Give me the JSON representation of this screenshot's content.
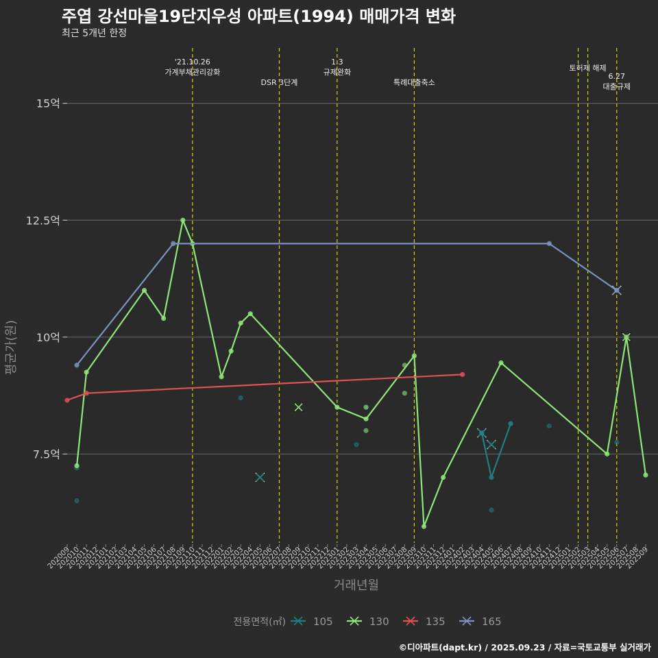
{
  "header": {
    "title": "주엽 강선마을19단지우성 아파트(1994) 매매가격 변화",
    "subtitle": "최근 5개년 한정"
  },
  "caption": "©디아파트(dapt.kr) / 2025.09.23 / 자료=국토교통부 실거래가",
  "colors": {
    "background": "#2b2b2b",
    "grid": "#6a6a6a",
    "event_line": "#d6d600",
    "105": "#1f7f82",
    "130": "#90e67a",
    "135": "#e05252",
    "165": "#7a93c0"
  },
  "chart_data": {
    "type": "line",
    "title": "주엽 강선마을19단지우성 아파트(1994) 매매가격 변화",
    "subtitle": "최근 5개년 한정",
    "xlabel": "거래년월",
    "ylabel": "평균가(원)",
    "ylim": [
      5.6,
      16.3
    ],
    "yticks": [
      7.5,
      10,
      12.5,
      15
    ],
    "ytick_labels": [
      "7.5억",
      "10억",
      "12.5억",
      "15억"
    ],
    "grid": true,
    "legend_position": "bottom",
    "legend_title": "전용면적(㎡)",
    "x": [
      "202009",
      "202010",
      "202011",
      "202012",
      "202101",
      "202102",
      "202103",
      "202104",
      "202105",
      "202106",
      "202107",
      "202108",
      "202109",
      "202110",
      "202111",
      "202112",
      "202201",
      "202202",
      "202203",
      "202204",
      "202205",
      "202206",
      "202207",
      "202208",
      "202209",
      "202210",
      "202211",
      "202212",
      "202301",
      "202302",
      "202303",
      "202304",
      "202305",
      "202306",
      "202307",
      "202308",
      "202309",
      "202310",
      "202311",
      "202312",
      "202401",
      "202402",
      "202403",
      "202404",
      "202405",
      "202406",
      "202407",
      "202408",
      "202409",
      "202410",
      "202411",
      "202412",
      "202501",
      "202502",
      "202503",
      "202504",
      "202505",
      "202506",
      "202507",
      "202508",
      "202509"
    ],
    "events": [
      {
        "date": "202110",
        "label": "'21.10.26\n가계부채관리강화",
        "level": 0
      },
      {
        "date": "202207",
        "label": "DSR 3단계",
        "level": 1
      },
      {
        "date": "202301",
        "label": "1.3\n규제완화",
        "level": 0
      },
      {
        "date": "202309",
        "label": "특례대출축소",
        "level": 1
      },
      {
        "date": "202502",
        "label": "",
        "level": 0
      },
      {
        "date": "202503",
        "label": "토허제 해제",
        "level": 0
      },
      {
        "date": "202506",
        "label": "6.27\n대출규제",
        "level": 1
      }
    ],
    "series": [
      {
        "name": "105",
        "line": [
          [
            "202404",
            7.95
          ],
          [
            "202405",
            7.0
          ],
          [
            "202407",
            8.15
          ]
        ],
        "points": [
          [
            "202010",
            7.2
          ],
          [
            "202010",
            6.5
          ],
          [
            "202203",
            8.7
          ],
          [
            "202303",
            7.7
          ],
          [
            "202304",
            8.5
          ],
          [
            "202404",
            7.95
          ],
          [
            "202405",
            6.3
          ],
          [
            "202407",
            8.15
          ],
          [
            "202411",
            8.1
          ],
          [
            "202506",
            7.75
          ]
        ],
        "crosses": [
          [
            "202205",
            7.0
          ],
          [
            "202404",
            7.95
          ],
          [
            "202405",
            7.7
          ]
        ]
      },
      {
        "name": "130",
        "line": [
          [
            "202010",
            7.25
          ],
          [
            "202011",
            9.25
          ],
          [
            "202105",
            11.0
          ],
          [
            "202107",
            10.4
          ],
          [
            "202109",
            12.5
          ],
          [
            "202110",
            12.0
          ],
          [
            "202201",
            9.15
          ],
          [
            "202202",
            9.7
          ],
          [
            "202203",
            10.3
          ],
          [
            "202204",
            10.5
          ],
          [
            "202301",
            8.5
          ],
          [
            "202304",
            8.25
          ],
          [
            "202309",
            9.6
          ],
          [
            "202310",
            5.95
          ],
          [
            "202312",
            7.0
          ],
          [
            "202406",
            9.45
          ],
          [
            "202505",
            7.5
          ],
          [
            "202507",
            10.0
          ],
          [
            "202509",
            7.05
          ]
        ],
        "points": [
          [
            "202304",
            8.0
          ],
          [
            "202304",
            8.5
          ],
          [
            "202308",
            9.4
          ],
          [
            "202308",
            8.8
          ]
        ],
        "crosses": [
          [
            "202209",
            8.5
          ],
          [
            "202507",
            10.0
          ]
        ]
      },
      {
        "name": "135",
        "line": [
          [
            "202009",
            8.65
          ],
          [
            "202011",
            8.8
          ],
          [
            "202402",
            9.2
          ]
        ],
        "points": [],
        "crosses": []
      },
      {
        "name": "165",
        "line": [
          [
            "202010",
            9.4
          ],
          [
            "202108",
            12.0
          ],
          [
            "202411",
            12.0
          ],
          [
            "202506",
            11.0
          ]
        ],
        "points": [],
        "crosses": [
          [
            "202506",
            11.0
          ]
        ]
      }
    ]
  }
}
